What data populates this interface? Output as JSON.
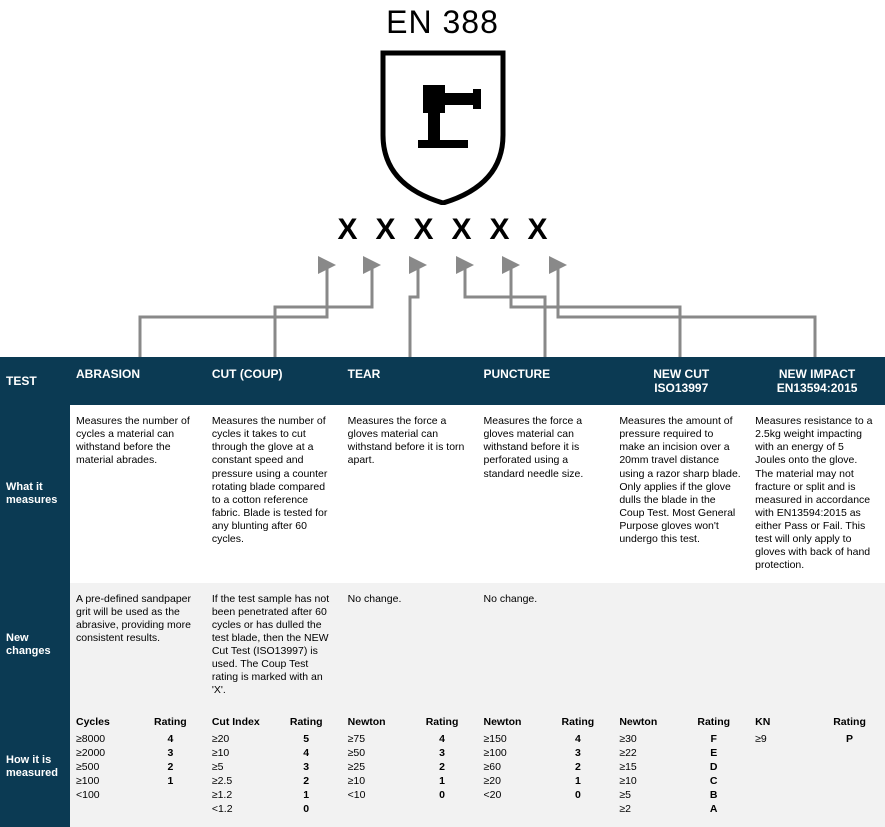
{
  "title": "EN 388",
  "x_marks": [
    "X",
    "X",
    "X",
    "X",
    "X",
    "X"
  ],
  "colors": {
    "header_bg": "#0b3a53",
    "header_fg": "#ffffff",
    "alt_row_bg": "#f2f2f2",
    "connector": "#898989"
  },
  "headers": {
    "test": "TEST",
    "cols": [
      "ABRASION",
      "CUT (COUP)",
      "TEAR",
      "PUNCTURE",
      "NEW CUT\nISO13997",
      "NEW IMPACT\nEN13594:2015"
    ]
  },
  "what_it_measures": {
    "label": "What it\nmeasures",
    "cells": [
      "Measures the number of cycles a material can withstand before the material abrades.",
      "Measures the number of cycles it takes to cut through the glove at a constant speed and pressure using a counter rotating blade compared to a cotton reference fabric.  Blade is tested for any blunting after 60 cycles.",
      "Measures the force a gloves material can withstand before it is torn apart.",
      "Measures the force a gloves material can withstand before it is perforated using a standard needle size.",
      "Measures the amount of pressure required to make an incision over a 20mm travel distance using a razor sharp blade. Only applies if the glove dulls the blade in the Coup Test.  Most General Purpose gloves won't undergo this test.",
      "Measures resistance to a 2.5kg weight impacting with an energy of 5 Joules onto the glove. The material may not fracture or split and is measured in accordance with EN13594:2015 as either Pass or Fail. This test will only apply to gloves with back of hand protection."
    ]
  },
  "new_changes": {
    "label": "New\nchanges",
    "cells": [
      "A pre-defined sandpaper grit will be used as the abrasive, providing more consistent results.",
      "If the test sample has not been penetrated after 60 cycles or has dulled the test blade, then the NEW Cut Test (ISO13997) is used. The Coup Test rating is marked with an 'X'.",
      "No change.",
      "No change.",
      "",
      ""
    ]
  },
  "how_measured": {
    "label": "How it is\nmeasured",
    "columns": [
      {
        "head": [
          "Cycles",
          "Rating"
        ],
        "rows": [
          [
            "≥8000",
            "4"
          ],
          [
            "≥2000",
            "3"
          ],
          [
            "≥500",
            "2"
          ],
          [
            "≥100",
            "1"
          ],
          [
            "<100",
            ""
          ]
        ]
      },
      {
        "head": [
          "Cut Index",
          "Rating"
        ],
        "rows": [
          [
            "≥20",
            "5"
          ],
          [
            "≥10",
            "4"
          ],
          [
            "≥5",
            "3"
          ],
          [
            "≥2.5",
            "2"
          ],
          [
            "≥1.2",
            "1"
          ],
          [
            "<1.2",
            "0"
          ]
        ]
      },
      {
        "head": [
          "Newton",
          "Rating"
        ],
        "rows": [
          [
            "≥75",
            "4"
          ],
          [
            "≥50",
            "3"
          ],
          [
            "≥25",
            "2"
          ],
          [
            "≥10",
            "1"
          ],
          [
            "<10",
            "0"
          ]
        ]
      },
      {
        "head": [
          "Newton",
          "Rating"
        ],
        "rows": [
          [
            "≥150",
            "4"
          ],
          [
            "≥100",
            "3"
          ],
          [
            "≥60",
            "2"
          ],
          [
            "≥20",
            "1"
          ],
          [
            "<20",
            "0"
          ]
        ]
      },
      {
        "head": [
          "Newton",
          "Rating"
        ],
        "rows": [
          [
            "≥30",
            "F"
          ],
          [
            "≥22",
            "E"
          ],
          [
            "≥15",
            "D"
          ],
          [
            "≥10",
            "C"
          ],
          [
            "≥5",
            "B"
          ],
          [
            "≥2",
            "A"
          ]
        ]
      },
      {
        "head": [
          "KN",
          "Rating"
        ],
        "rows": [
          [
            "≥9",
            "P"
          ]
        ]
      }
    ]
  }
}
